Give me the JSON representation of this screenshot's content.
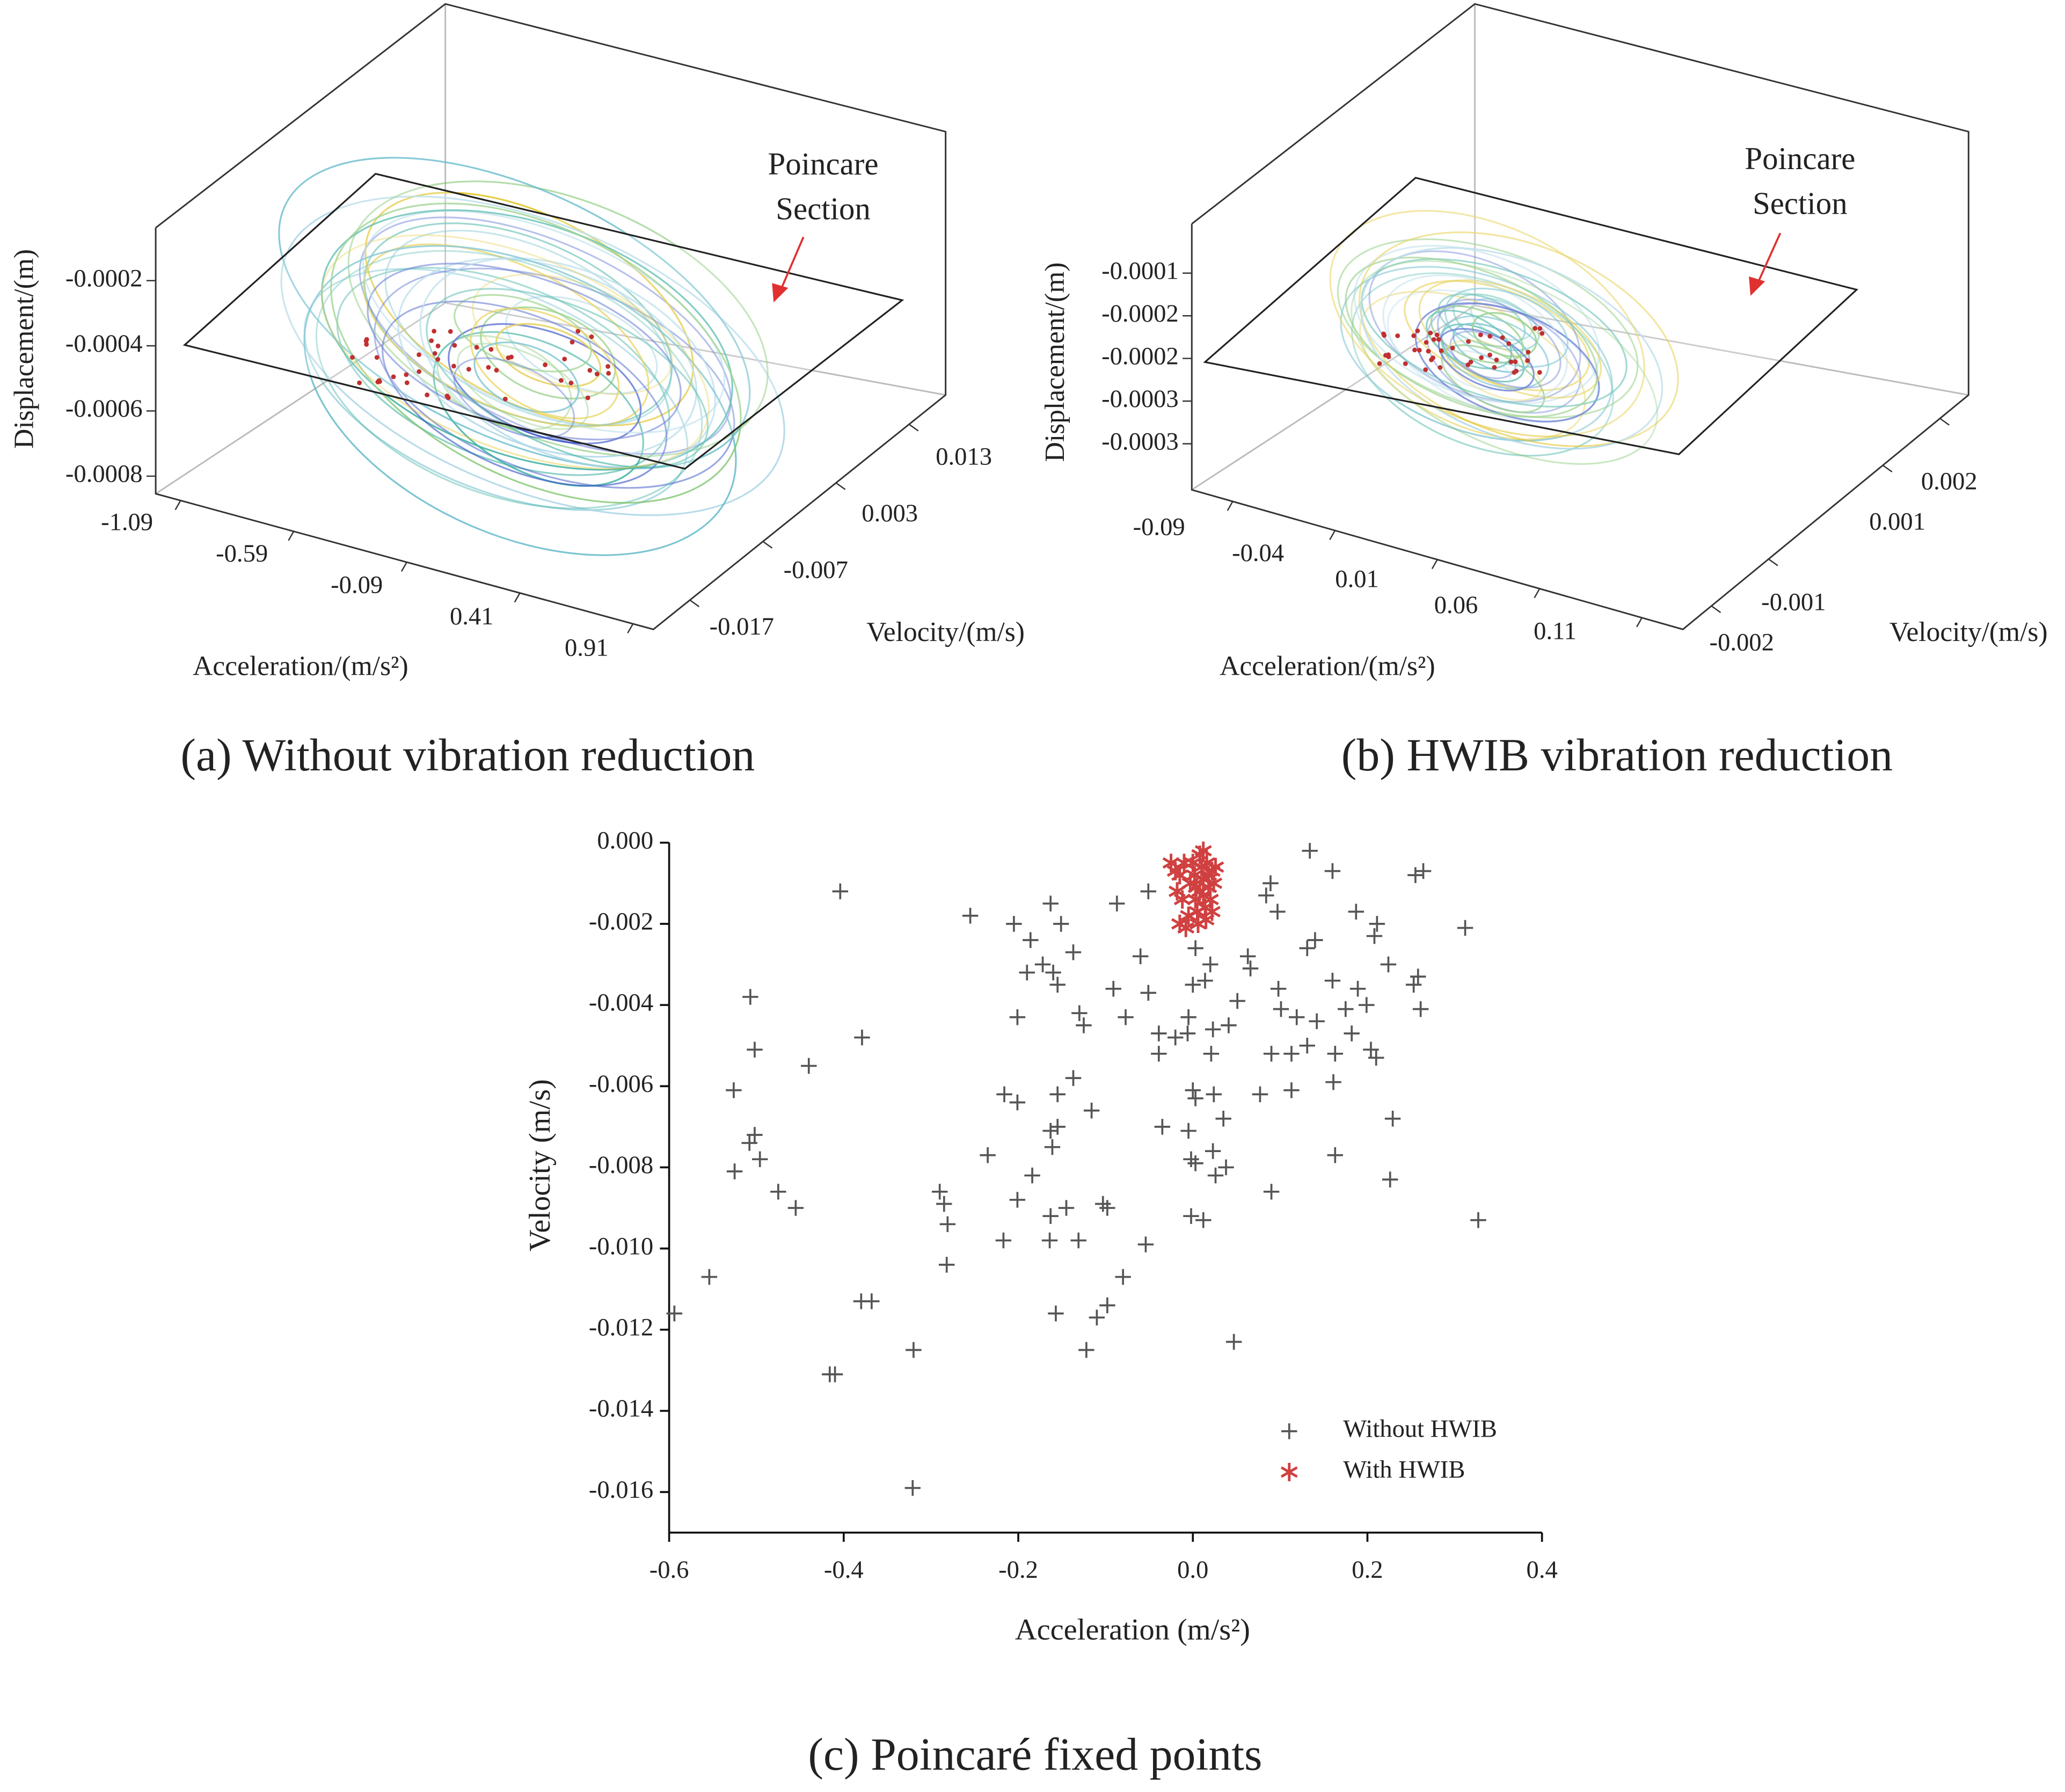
{
  "chart_data": [
    {
      "type": "trajectory3d",
      "caption": "(a) Without vibration reduction",
      "x_label": "Acceleration/(m/s²)",
      "y_label": "Velocity/(m/s)",
      "z_label": "Displacement/(m)",
      "annotation": [
        "Poincare",
        "Section"
      ],
      "xlim": [
        -1.2,
        1.0
      ],
      "xticks": [
        -1.09,
        -0.59,
        -0.09,
        0.41,
        0.91
      ],
      "ylim": [
        -0.022,
        0.018
      ],
      "yticks": [
        -0.017,
        -0.007,
        0.003,
        0.013
      ],
      "zlim": [
        -0.00085,
        -5e-05
      ],
      "zticks": [
        -0.0002,
        -0.0004,
        -0.0006,
        -0.0008
      ]
    },
    {
      "type": "trajectory3d",
      "caption": "(b) HWIB vibration reduction",
      "x_label": "Acceleration/(m/s²)",
      "y_label": "Velocity/(m/s)",
      "z_label": "Displacement/(m)",
      "annotation": [
        "Poincare",
        "Section"
      ],
      "xlim": [
        -0.11,
        0.13
      ],
      "xticks": [
        -0.09,
        -0.04,
        0.01,
        0.06,
        0.11
      ],
      "ylim": [
        -0.0025,
        0.0025
      ],
      "yticks": [
        -0.002,
        -0.001,
        0.001,
        0.002
      ],
      "zlim": [
        -0.00032,
        -7e-05
      ],
      "zticks": [
        -0.0001,
        {
          "value": -0.00015,
          "label": "-0.0002"
        },
        -0.0002,
        {
          "value": -0.00025,
          "label": "-0.0003"
        },
        -0.0003
      ]
    },
    {
      "type": "scatter",
      "caption": "(c) Poincaré fixed points",
      "x_label": "Acceleration (m/s²)",
      "y_label": "Velocity (m/s)",
      "xlim": [
        -0.6,
        0.4
      ],
      "xticks": [
        -0.6,
        -0.4,
        -0.2,
        {
          "value": 0,
          "label": "0.0"
        },
        0.2,
        0.4
      ],
      "ylim": [
        -0.017,
        0
      ],
      "yticks": [
        {
          "value": 0,
          "label": "0.000"
        },
        -0.002,
        -0.004,
        -0.006,
        -0.008,
        {
          "value": -0.01,
          "label": "-0.010"
        },
        -0.012,
        -0.014,
        -0.016
      ],
      "legend": "lower right",
      "series": [
        {
          "name": "Without HWIB",
          "color": "#555555",
          "marker": "plus",
          "x": [
            -0.404,
            0.134,
            0.16,
            0.264,
            0.255,
            -0.255,
            -0.087,
            -0.163,
            -0.051,
            0.089,
            0.084,
            0.187,
            0.211,
            0.208,
            0.312,
            -0.205,
            -0.186,
            -0.151,
            -0.137,
            0.003,
            0.097,
            0.14,
            0.131,
            0.224,
            -0.19,
            -0.172,
            -0.16,
            -0.155,
            -0.06,
            0.02,
            0.014,
            0.063,
            0.066,
            0.258,
            0.253,
            -0.507,
            -0.091,
            -0.051,
            0.0,
            0.098,
            0.16,
            0.189,
            0.175,
            0.199,
            0.261,
            -0.201,
            -0.13,
            -0.125,
            -0.077,
            0.051,
            0.041,
            -0.005,
            -0.039,
            -0.02,
            -0.006,
            0.023,
            0.101,
            0.119,
            0.142,
            -0.379,
            -0.502,
            -0.44,
            -0.039,
            0.021,
            0.09,
            0.113,
            0.131,
            0.163,
            0.182,
            0.204,
            0.21,
            -0.137,
            0.161,
            -0.526,
            -0.216,
            -0.201,
            -0.155,
            0.0,
            0.003,
            0.024,
            0.077,
            0.113,
            -0.116,
            0.035,
            0.229,
            -0.502,
            -0.508,
            -0.163,
            -0.155,
            -0.161,
            -0.035,
            -0.005,
            -0.496,
            -0.525,
            -0.235,
            -0.002,
            0.003,
            0.023,
            0.038,
            0.026,
            0.163,
            -0.184,
            0.226,
            -0.475,
            -0.455,
            -0.29,
            -0.285,
            -0.281,
            -0.201,
            -0.145,
            -0.163,
            -0.103,
            -0.098,
            -0.002,
            0.012,
            0.09,
            0.327,
            -0.217,
            -0.164,
            -0.131,
            -0.054,
            -0.282,
            -0.554,
            -0.08,
            -0.38,
            -0.368,
            -0.098,
            -0.11,
            -0.157,
            -0.594,
            -0.32,
            -0.122,
            0.047,
            -0.416,
            -0.41,
            -0.321
          ],
          "values": [
            -0.0012,
            -0.0002,
            -0.0007,
            -0.0007,
            -0.0008,
            -0.0018,
            -0.0015,
            -0.0015,
            -0.0012,
            -0.001,
            -0.0013,
            -0.0017,
            -0.002,
            -0.0023,
            -0.0021,
            -0.002,
            -0.0024,
            -0.002,
            -0.0027,
            -0.0026,
            -0.0017,
            -0.0024,
            -0.0026,
            -0.003,
            -0.0032,
            -0.003,
            -0.0032,
            -0.0035,
            -0.0028,
            -0.003,
            -0.0034,
            -0.0028,
            -0.0031,
            -0.0033,
            -0.0035,
            -0.0038,
            -0.0036,
            -0.0037,
            -0.0035,
            -0.0036,
            -0.0034,
            -0.0036,
            -0.0041,
            -0.004,
            -0.0041,
            -0.0043,
            -0.0042,
            -0.0045,
            -0.0043,
            -0.0039,
            -0.0045,
            -0.0043,
            -0.0047,
            -0.0048,
            -0.0047,
            -0.0046,
            -0.0041,
            -0.0043,
            -0.0044,
            -0.0048,
            -0.0051,
            -0.0055,
            -0.0052,
            -0.0052,
            -0.0052,
            -0.0052,
            -0.005,
            -0.0052,
            -0.0047,
            -0.0051,
            -0.0053,
            -0.0058,
            -0.0059,
            -0.0061,
            -0.0062,
            -0.0064,
            -0.0062,
            -0.0061,
            -0.0063,
            -0.0062,
            -0.0062,
            -0.0061,
            -0.0066,
            -0.0068,
            -0.0068,
            -0.0072,
            -0.0074,
            -0.0071,
            -0.007,
            -0.0075,
            -0.007,
            -0.0071,
            -0.0078,
            -0.0081,
            -0.0077,
            -0.0078,
            -0.0079,
            -0.0076,
            -0.008,
            -0.0082,
            -0.0077,
            -0.0082,
            -0.0083,
            -0.0086,
            -0.009,
            -0.0086,
            -0.0089,
            -0.0094,
            -0.0088,
            -0.009,
            -0.0092,
            -0.0089,
            -0.009,
            -0.0092,
            -0.0093,
            -0.0086,
            -0.0093,
            -0.0098,
            -0.0098,
            -0.0098,
            -0.0099,
            -0.0104,
            -0.0107,
            -0.0107,
            -0.0113,
            -0.0113,
            -0.0114,
            -0.0117,
            -0.0116,
            -0.0116,
            -0.0125,
            -0.0125,
            -0.0123,
            -0.0131,
            -0.0131,
            -0.0159
          ]
        },
        {
          "name": "With HWIB",
          "color": "#d04040",
          "marker": "asterisk",
          "x": [
            -0.025,
            -0.02,
            -0.015,
            -0.01,
            -0.018,
            -0.012,
            -0.015,
            -0.008,
            -0.005,
            0.0,
            0.002,
            0.004,
            0.003,
            0.005,
            0.008,
            0.01,
            0.012,
            0.012,
            0.012,
            0.014,
            0.015,
            0.016,
            0.018,
            0.018,
            0.02,
            0.022,
            0.022,
            0.024,
            0.026,
            0.008,
            -0.003,
            0.006
          ],
          "values": [
            -0.0005,
            -0.0007,
            -0.0008,
            -0.0005,
            -0.0012,
            -0.0014,
            -0.002,
            -0.0021,
            -0.0018,
            -0.0005,
            -0.0008,
            -0.0011,
            -0.0014,
            -0.0017,
            -0.0003,
            -0.0006,
            -0.0002,
            -0.0009,
            -0.0013,
            -0.0016,
            -0.0019,
            -0.0005,
            -0.0008,
            -0.0011,
            -0.0014,
            -0.0007,
            -0.0017,
            -0.001,
            -0.0006,
            -0.0012,
            -0.001,
            -0.002
          ]
        }
      ]
    }
  ]
}
